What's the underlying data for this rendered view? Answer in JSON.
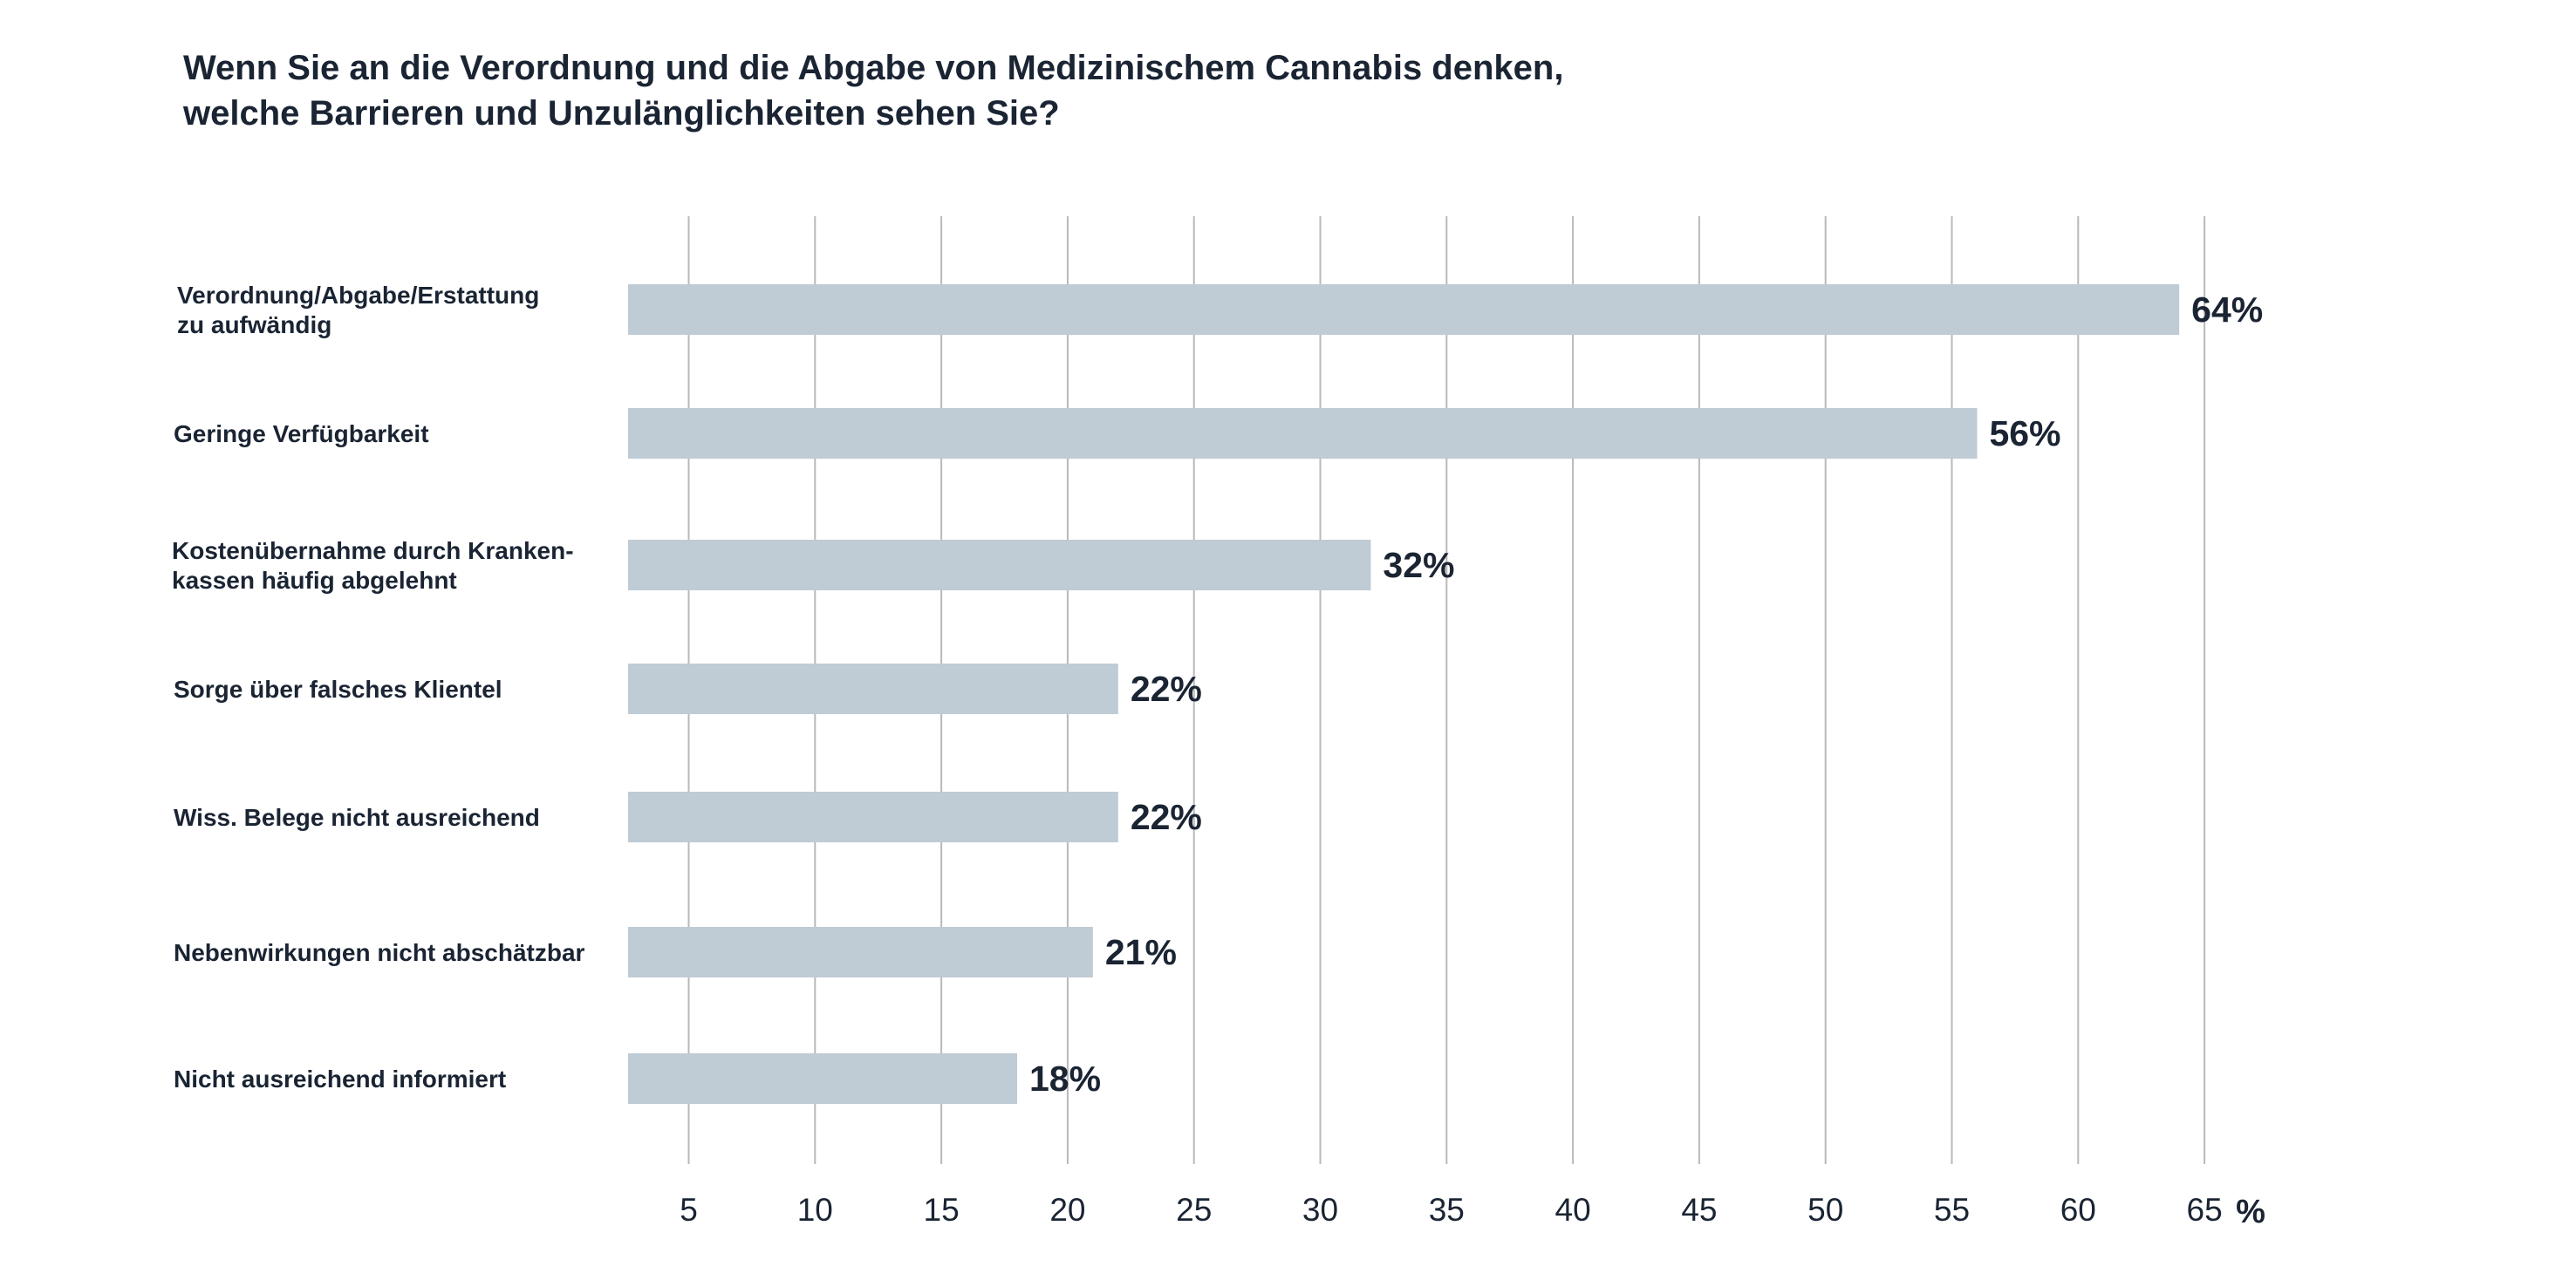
{
  "chart_data": {
    "type": "bar",
    "orientation": "horizontal",
    "title_lines": [
      "Wenn Sie an die Verordnung und die Abgabe von Medizinischem Cannabis denken,",
      "welche Barrieren und Unzulänglichkeiten sehen Sie?"
    ],
    "categories": [
      [
        "Verordnung/Abgabe/Erstattung",
        "zu aufwändig"
      ],
      [
        "Geringe Verfügbarkeit"
      ],
      [
        "Kostenübernahme durch Kranken-",
        "kassen häufig abgelehnt"
      ],
      [
        "Sorge über falsches Klientel"
      ],
      [
        "Wiss. Belege nicht ausreichend"
      ],
      [
        "Nebenwirkungen nicht abschätzbar"
      ],
      [
        "Nicht ausreichend informiert"
      ]
    ],
    "values": [
      64,
      56,
      32,
      22,
      22,
      21,
      18
    ],
    "value_labels": [
      "64%",
      "56%",
      "32%",
      "22%",
      "22%",
      "21%",
      "18%"
    ],
    "x_ticks": [
      5,
      10,
      15,
      20,
      25,
      30,
      35,
      40,
      45,
      50,
      55,
      60,
      65
    ],
    "x_tick_labels": [
      "5",
      "10",
      "15",
      "20",
      "25",
      "30",
      "35",
      "40",
      "45",
      "50",
      "55",
      "60",
      "65"
    ],
    "x_unit": "%",
    "xlim": [
      2.6,
      65
    ],
    "grid": true,
    "bar_color": "#bfcbd5",
    "grid_color": "#b9b9b9",
    "text_color": "#1a2433"
  }
}
